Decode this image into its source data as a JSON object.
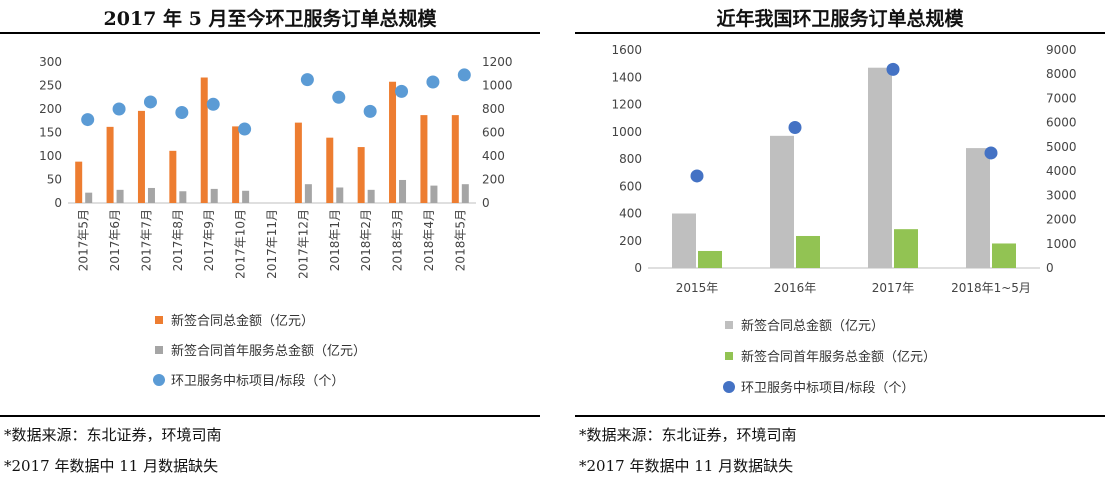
{
  "left": {
    "title": "2017 年 5 月至今环卫服务订单总规模",
    "note1": "*数据来源：东北证券，环境司南",
    "note2": "*2017 年数据中 11 月数据缺失"
  },
  "right": {
    "title": "近年我国环卫服务订单总规模",
    "note1": "*数据来源：东北证券，环境司南",
    "note2": "*2017 年数据中 11 月数据缺失"
  },
  "chart_data": [
    {
      "type": "bar",
      "title": "2017 年 5 月至今环卫服务订单总规模",
      "categories": [
        "2017年5月",
        "2017年6月",
        "2017年7月",
        "2017年8月",
        "2017年9月",
        "2017年10月",
        "2017年11月",
        "2017年12月",
        "2018年1月",
        "2018年2月",
        "2018年3月",
        "2018年4月",
        "2018年5月"
      ],
      "ylim": [
        0,
        300
      ],
      "yticks": [
        0,
        50,
        100,
        150,
        200,
        250,
        300
      ],
      "y2lim": [
        0,
        1200
      ],
      "y2ticks": [
        0,
        200,
        400,
        600,
        800,
        1000,
        1200
      ],
      "grid": false,
      "legend_position": "bottom",
      "series": [
        {
          "name": "新签合同总金额（亿元）",
          "kind": "bar",
          "axis": "left",
          "color": "#ED7D31",
          "values": [
            88,
            162,
            196,
            111,
            267,
            163,
            null,
            171,
            139,
            119,
            258,
            187,
            187
          ]
        },
        {
          "name": "新签合同首年服务总金额（亿元）",
          "kind": "bar",
          "axis": "left",
          "color": "#A5A5A5",
          "values": [
            22,
            28,
            32,
            25,
            30,
            26,
            null,
            40,
            33,
            28,
            49,
            37,
            40
          ]
        },
        {
          "name": "环卫服务中标项目/标段（个）",
          "kind": "scatter",
          "axis": "right",
          "color": "#5B9BD5",
          "values": [
            710,
            800,
            860,
            770,
            840,
            630,
            null,
            1050,
            900,
            780,
            950,
            1030,
            1090
          ]
        }
      ]
    },
    {
      "type": "bar",
      "title": "近年我国环卫服务订单总规模",
      "categories": [
        "2015年",
        "2016年",
        "2017年",
        "2018年1~5月"
      ],
      "ylim": [
        0,
        1600
      ],
      "yticks": [
        0,
        200,
        400,
        600,
        800,
        1000,
        1200,
        1400,
        1600
      ],
      "y2lim": [
        0,
        9000
      ],
      "y2ticks": [
        0,
        1000,
        2000,
        3000,
        4000,
        5000,
        6000,
        7000,
        8000,
        9000
      ],
      "grid": false,
      "legend_position": "bottom",
      "series": [
        {
          "name": "新签合同总金额（亿元）",
          "kind": "bar",
          "axis": "left",
          "color": "#BFBFBF",
          "values": [
            400,
            970,
            1470,
            880
          ]
        },
        {
          "name": "新签合同首年服务总金额（亿元）",
          "kind": "bar",
          "axis": "left",
          "color": "#92C353",
          "values": [
            125,
            235,
            285,
            180
          ]
        },
        {
          "name": "环卫服务中标项目/标段（个）",
          "kind": "scatter",
          "axis": "right",
          "color": "#4472C4",
          "values": [
            3800,
            5800,
            8200,
            4750
          ]
        }
      ]
    }
  ]
}
